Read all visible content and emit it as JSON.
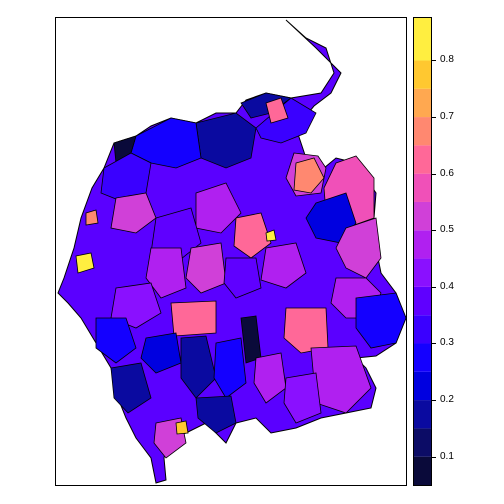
{
  "map": {
    "title": "",
    "fill_scale": "topo-like: dark navy (low) → blue → violet → pink → orange → yellow (high)"
  },
  "legend": {
    "min": 0.05,
    "max": 0.875,
    "ticks": [
      {
        "value": 0.1,
        "label": "0.1"
      },
      {
        "value": 0.2,
        "label": "0.2"
      },
      {
        "value": 0.3,
        "label": "0.3"
      },
      {
        "value": 0.4,
        "label": "0.4"
      },
      {
        "value": 0.5,
        "label": "0.5"
      },
      {
        "value": 0.6,
        "label": "0.6"
      },
      {
        "value": 0.7,
        "label": "0.7"
      },
      {
        "value": 0.8,
        "label": "0.8"
      }
    ],
    "bands": [
      {
        "from": 0.05,
        "to": 0.1,
        "color": "#0a0a3a"
      },
      {
        "from": 0.1,
        "to": 0.15,
        "color": "#0c0c66"
      },
      {
        "from": 0.15,
        "to": 0.2,
        "color": "#0a0aa0"
      },
      {
        "from": 0.2,
        "to": 0.25,
        "color": "#0000e0"
      },
      {
        "from": 0.25,
        "to": 0.3,
        "color": "#1400ff"
      },
      {
        "from": 0.3,
        "to": 0.35,
        "color": "#3a00ff"
      },
      {
        "from": 0.35,
        "to": 0.4,
        "color": "#5f00ff"
      },
      {
        "from": 0.4,
        "to": 0.45,
        "color": "#8a10ff"
      },
      {
        "from": 0.45,
        "to": 0.5,
        "color": "#b020f0"
      },
      {
        "from": 0.5,
        "to": 0.55,
        "color": "#d040d8"
      },
      {
        "from": 0.55,
        "to": 0.6,
        "color": "#f050b8"
      },
      {
        "from": 0.6,
        "to": 0.65,
        "color": "#ff6898"
      },
      {
        "from": 0.65,
        "to": 0.7,
        "color": "#ff8870"
      },
      {
        "from": 0.7,
        "to": 0.75,
        "color": "#ffa850"
      },
      {
        "from": 0.75,
        "to": 0.8,
        "color": "#ffc830"
      },
      {
        "from": 0.8,
        "to": 0.875,
        "color": "#ffee40"
      }
    ]
  },
  "colors": {
    "border": "#000000",
    "background": "#ffffff"
  }
}
